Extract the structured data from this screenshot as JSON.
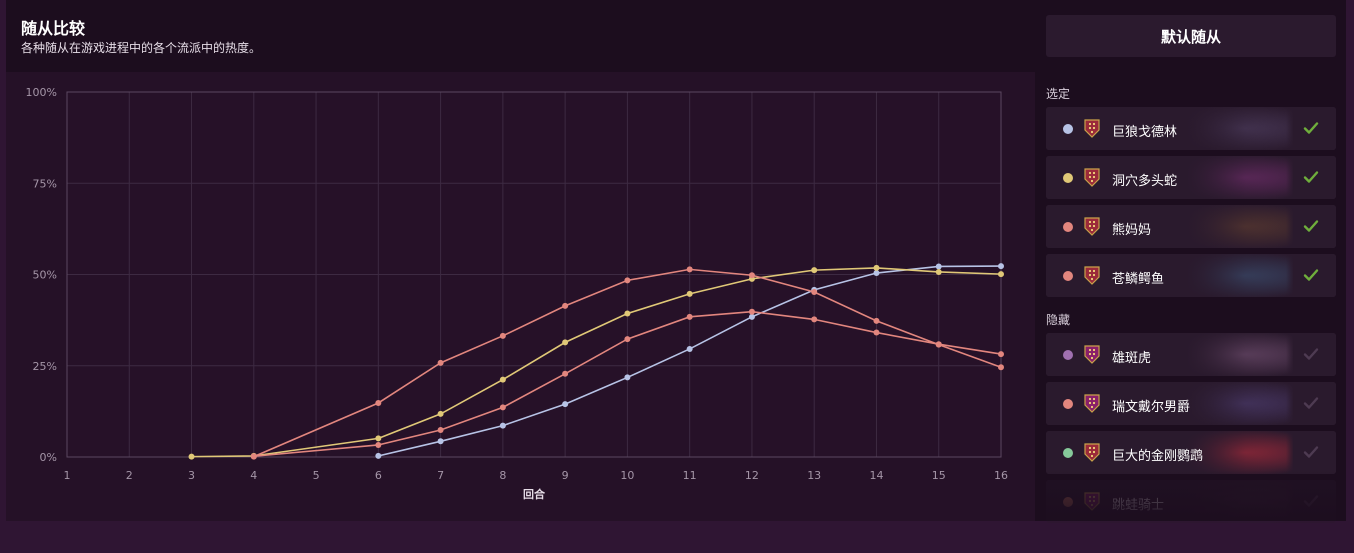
{
  "header": {
    "title": "随从比较",
    "subtitle": "各种随从在游戏进程中的各个流派中的热度。"
  },
  "sidebar": {
    "default_button": "默认随从",
    "selected_label": "选定",
    "hidden_label": "隐藏",
    "selected": [
      {
        "name": "巨狼戈德林",
        "color": "#b7c3e6",
        "tier_color": "#9b2a3a",
        "art": "#4a3a5a",
        "checked": true
      },
      {
        "name": "洞穴多头蛇",
        "color": "#e0c877",
        "tier_color": "#9b2a3a",
        "art": "#6a2c66",
        "checked": true
      },
      {
        "name": "熊妈妈",
        "color": "#e2867e",
        "tier_color": "#9b2a3a",
        "art": "#5a3a30",
        "checked": true
      },
      {
        "name": "苍鳞鳄鱼",
        "color": "#e2867e",
        "tier_color": "#9b2a3a",
        "art": "#3a4a6a",
        "checked": true
      }
    ],
    "hidden": [
      {
        "name": "雄斑虎",
        "color": "#a070b0",
        "tier_color": "#8a1f6a",
        "art": "#6a4a6a",
        "checked": false
      },
      {
        "name": "瑞文戴尔男爵",
        "color": "#e2867e",
        "tier_color": "#8a1f6a",
        "art": "#4a3a6a",
        "checked": false
      },
      {
        "name": "巨大的金刚鹦鹉",
        "color": "#86c99a",
        "tier_color": "#9b2a3a",
        "art": "#a02a3a",
        "checked": false
      },
      {
        "name": "跳蛙骑士",
        "color": "#d08060",
        "tier_color": "#8a1f6a",
        "art": "#3a2a3a",
        "checked": false
      }
    ]
  },
  "chart_data": {
    "type": "line",
    "title": "随从比较",
    "subtitle": "各种随从在游戏进程中的各个流派中的热度。",
    "xlabel": "回合",
    "ylabel": "",
    "x": [
      1,
      2,
      3,
      4,
      5,
      6,
      7,
      8,
      9,
      10,
      11,
      12,
      13,
      14,
      15,
      16
    ],
    "xlim": [
      1,
      16
    ],
    "ylim": [
      0,
      100
    ],
    "y_ticks": [
      "0%",
      "25%",
      "50%",
      "75%",
      "100%"
    ],
    "grid": true,
    "series": [
      {
        "name": "巨狼戈德林",
        "color": "#b7c3e6",
        "points": [
          [
            6,
            0.3
          ],
          [
            7,
            4.3
          ],
          [
            8,
            8.6
          ],
          [
            9,
            14.5
          ],
          [
            10,
            21.8
          ],
          [
            11,
            29.6
          ],
          [
            12,
            38.4
          ],
          [
            13,
            45.8
          ],
          [
            14,
            50.4
          ],
          [
            15,
            52.2
          ],
          [
            16,
            52.3
          ]
        ]
      },
      {
        "name": "洞穴多头蛇",
        "color": "#e0c877",
        "points": [
          [
            3,
            0.1
          ],
          [
            4,
            0.3
          ],
          [
            6,
            5.1
          ],
          [
            7,
            11.8
          ],
          [
            8,
            21.2
          ],
          [
            9,
            31.4
          ],
          [
            10,
            39.3
          ],
          [
            11,
            44.7
          ],
          [
            12,
            48.8
          ],
          [
            13,
            51.2
          ],
          [
            14,
            51.8
          ],
          [
            15,
            50.7
          ],
          [
            16,
            50.1
          ]
        ]
      },
      {
        "name": "熊妈妈",
        "color": "#e2867e",
        "points": [
          [
            4,
            0.1
          ],
          [
            6,
            14.8
          ],
          [
            7,
            25.8
          ],
          [
            8,
            33.2
          ],
          [
            9,
            41.4
          ],
          [
            10,
            48.4
          ],
          [
            11,
            51.4
          ],
          [
            12,
            49.8
          ],
          [
            13,
            45.2
          ],
          [
            14,
            37.3
          ],
          [
            15,
            30.8
          ],
          [
            16,
            24.6
          ]
        ]
      },
      {
        "name": "苍鳞鳄鱼",
        "color": "#e2867e",
        "points": [
          [
            4,
            0.2
          ],
          [
            6,
            3.3
          ],
          [
            7,
            7.4
          ],
          [
            8,
            13.6
          ],
          [
            9,
            22.8
          ],
          [
            10,
            32.3
          ],
          [
            11,
            38.4
          ],
          [
            12,
            39.8
          ],
          [
            13,
            37.7
          ],
          [
            14,
            34.1
          ],
          [
            15,
            30.9
          ],
          [
            16,
            28.2
          ]
        ]
      }
    ]
  }
}
